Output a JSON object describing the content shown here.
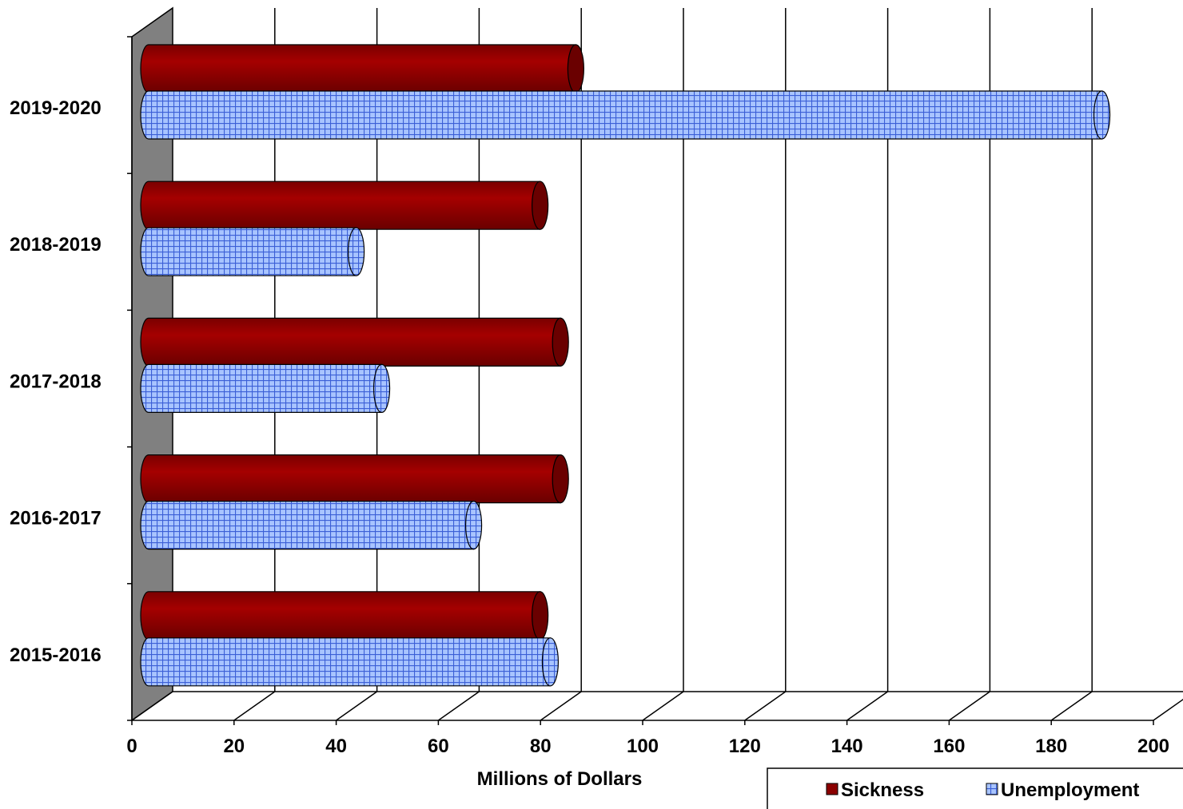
{
  "colors": {
    "sickness": "#8b0000",
    "sickness_dark": "#5a0000",
    "unemployment": "#a8c4ff",
    "unemployment_grid": "#3b5fd6",
    "wall": "#808080"
  },
  "chart_data": {
    "type": "bar",
    "orientation": "horizontal",
    "style": "3d-cylinder",
    "xlabel": "Millions of Dollars",
    "xlim": [
      0,
      200
    ],
    "xticks": [
      "0",
      "20",
      "40",
      "60",
      "80",
      "100",
      "120",
      "140",
      "160",
      "180",
      "200"
    ],
    "categories": [
      "2019-2020",
      "2018-2019",
      "2017-2018",
      "2016-2017",
      "2015-2016"
    ],
    "series": [
      {
        "name": "Sickness",
        "values": [
          83,
          76,
          80,
          80,
          76
        ]
      },
      {
        "name": "Unemployment",
        "values": [
          186,
          40,
          45,
          63,
          78
        ]
      }
    ],
    "grid": true,
    "legend": "bottom-right"
  }
}
